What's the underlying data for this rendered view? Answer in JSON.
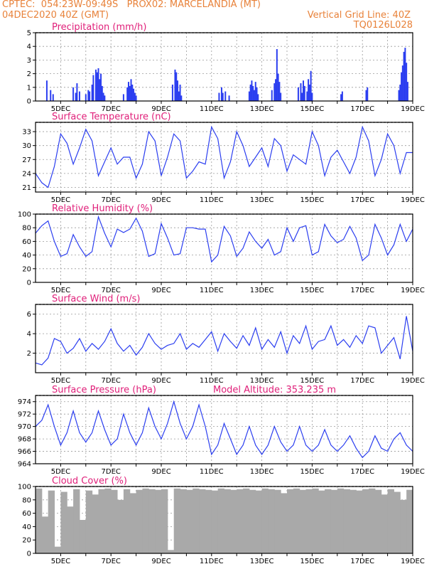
{
  "header": {
    "line1": "CPTEC:  054:23W-09:49S   PROX02: MARCELANDIA (MT)",
    "line2_left": "04DEC2020 40Z (GMT)",
    "line2_right": "Vertical Grid Line: 40Z",
    "line3_right": "TQ0126L028"
  },
  "colors": {
    "header": "#e8823a",
    "title": "#e0207a",
    "line": "#2b3ef0",
    "bar": "#2b3ef0",
    "cloud": "#a9a9a9"
  },
  "chart_data": [
    {
      "type": "bar",
      "title": "Precipitation (mm/h)",
      "x_ticks": [
        "5DEC",
        "7DEC",
        "9DEC",
        "11DEC",
        "13DEC",
        "15DEC",
        "17DEC",
        "19DEC"
      ],
      "x_range_days": [
        4.0,
        19.0
      ],
      "ylim": [
        0,
        5
      ],
      "y_ticks": [
        "0",
        "1",
        "2",
        "3",
        "4",
        "5"
      ],
      "bars": [
        [
          4.45,
          1.5
        ],
        [
          4.6,
          0.8
        ],
        [
          4.7,
          0.5
        ],
        [
          5.5,
          1.0
        ],
        [
          5.6,
          0.6
        ],
        [
          5.65,
          1.3
        ],
        [
          5.75,
          0.7
        ],
        [
          6.0,
          0.5
        ],
        [
          6.1,
          0.8
        ],
        [
          6.15,
          0.7
        ],
        [
          6.25,
          1.2
        ],
        [
          6.3,
          1.9
        ],
        [
          6.4,
          2.3
        ],
        [
          6.45,
          2.1
        ],
        [
          6.5,
          2.4
        ],
        [
          6.55,
          1.6
        ],
        [
          6.6,
          2.0
        ],
        [
          6.65,
          1.1
        ],
        [
          6.7,
          0.6
        ],
        [
          6.75,
          0.4
        ],
        [
          7.5,
          0.5
        ],
        [
          7.65,
          1.0
        ],
        [
          7.7,
          1.4
        ],
        [
          7.75,
          1.1
        ],
        [
          7.8,
          1.6
        ],
        [
          7.85,
          1.2
        ],
        [
          7.9,
          0.9
        ],
        [
          7.95,
          0.6
        ],
        [
          8.0,
          0.4
        ],
        [
          9.45,
          1.2
        ],
        [
          9.55,
          2.3
        ],
        [
          9.6,
          2.1
        ],
        [
          9.65,
          1.5
        ],
        [
          9.7,
          0.7
        ],
        [
          9.75,
          1.2
        ],
        [
          9.8,
          0.4
        ],
        [
          11.3,
          0.6
        ],
        [
          11.4,
          1.0
        ],
        [
          11.45,
          0.6
        ],
        [
          11.55,
          0.7
        ],
        [
          11.7,
          0.4
        ],
        [
          12.5,
          0.7
        ],
        [
          12.55,
          1.2
        ],
        [
          12.6,
          1.5
        ],
        [
          12.65,
          1.1
        ],
        [
          12.7,
          0.8
        ],
        [
          12.75,
          1.4
        ],
        [
          12.8,
          1.0
        ],
        [
          12.85,
          0.5
        ],
        [
          13.4,
          0.8
        ],
        [
          13.5,
          1.3
        ],
        [
          13.55,
          1.6
        ],
        [
          13.6,
          3.8
        ],
        [
          13.65,
          2.0
        ],
        [
          13.7,
          1.4
        ],
        [
          13.75,
          0.6
        ],
        [
          14.45,
          1.0
        ],
        [
          14.55,
          1.3
        ],
        [
          14.6,
          0.6
        ],
        [
          14.65,
          1.5
        ],
        [
          14.7,
          1.1
        ],
        [
          14.8,
          0.7
        ],
        [
          14.85,
          1.6
        ],
        [
          14.9,
          1.2
        ],
        [
          14.95,
          2.2
        ],
        [
          15.0,
          0.6
        ],
        [
          16.15,
          0.5
        ],
        [
          16.2,
          0.7
        ],
        [
          17.15,
          0.8
        ],
        [
          17.2,
          1.0
        ],
        [
          18.45,
          0.8
        ],
        [
          18.5,
          1.2
        ],
        [
          18.55,
          2.1
        ],
        [
          18.6,
          2.6
        ],
        [
          18.65,
          3.6
        ],
        [
          18.7,
          3.9
        ],
        [
          18.75,
          2.8
        ],
        [
          18.8,
          1.4
        ]
      ]
    },
    {
      "type": "line",
      "title": "Surface Temperature (nC)",
      "x_ticks": [
        "5DEC",
        "7DEC",
        "9DEC",
        "11DEC",
        "13DEC",
        "15DEC",
        "17DEC",
        "19DEC"
      ],
      "x_range_days": [
        4.0,
        19.0
      ],
      "ylim": [
        20,
        35
      ],
      "y_ticks": [
        "21",
        "24",
        "27",
        "30",
        "33"
      ],
      "x": [
        4.0,
        4.25,
        4.5,
        4.75,
        5.0,
        5.25,
        5.5,
        5.75,
        6.0,
        6.25,
        6.5,
        6.75,
        7.0,
        7.25,
        7.5,
        7.75,
        8.0,
        8.25,
        8.5,
        8.75,
        9.0,
        9.25,
        9.5,
        9.75,
        10.0,
        10.25,
        10.5,
        10.75,
        11.0,
        11.25,
        11.5,
        11.75,
        12.0,
        12.25,
        12.5,
        12.75,
        13.0,
        13.25,
        13.5,
        13.75,
        14.0,
        14.25,
        14.5,
        14.75,
        15.0,
        15.25,
        15.5,
        15.75,
        16.0,
        16.25,
        16.5,
        16.75,
        17.0,
        17.25,
        17.5,
        17.75,
        18.0,
        18.25,
        18.5,
        18.75,
        19.0
      ],
      "y": [
        24.0,
        22.0,
        21.0,
        25.5,
        32.5,
        30.5,
        26.0,
        29.5,
        33.5,
        31.0,
        23.5,
        26.5,
        29.5,
        26.0,
        27.5,
        27.5,
        23.0,
        26.0,
        33.0,
        31.0,
        23.5,
        27.5,
        32.5,
        31.0,
        23.0,
        24.5,
        26.5,
        26.0,
        34.0,
        31.5,
        23.0,
        26.5,
        33.0,
        30.0,
        25.5,
        27.5,
        29.5,
        25.5,
        31.5,
        30.0,
        24.5,
        28.0,
        27.0,
        26.0,
        33.0,
        30.0,
        23.5,
        27.5,
        29.0,
        26.5,
        24.0,
        27.5,
        34.0,
        31.0,
        23.5,
        27.0,
        32.5,
        30.0,
        24.0,
        28.5,
        28.5
      ]
    },
    {
      "type": "line",
      "title": "Relative Humidity (%)",
      "x_ticks": [
        "5DEC",
        "7DEC",
        "9DEC",
        "11DEC",
        "13DEC",
        "15DEC",
        "17DEC",
        "19DEC"
      ],
      "x_range_days": [
        4.0,
        19.0
      ],
      "ylim": [
        0,
        100
      ],
      "y_ticks": [
        "0",
        "20",
        "40",
        "60",
        "80",
        "100"
      ],
      "x": [
        4.0,
        4.25,
        4.5,
        4.75,
        5.0,
        5.25,
        5.5,
        5.75,
        6.0,
        6.25,
        6.5,
        6.75,
        7.0,
        7.25,
        7.5,
        7.75,
        8.0,
        8.25,
        8.5,
        8.75,
        9.0,
        9.25,
        9.5,
        9.75,
        10.0,
        10.25,
        10.5,
        10.75,
        11.0,
        11.25,
        11.5,
        11.75,
        12.0,
        12.25,
        12.5,
        12.75,
        13.0,
        13.25,
        13.5,
        13.75,
        14.0,
        14.25,
        14.5,
        14.75,
        15.0,
        15.25,
        15.5,
        15.75,
        16.0,
        16.25,
        16.5,
        16.75,
        17.0,
        17.25,
        17.5,
        17.75,
        18.0,
        18.25,
        18.5,
        18.75,
        19.0
      ],
      "y": [
        72.0,
        83.0,
        90.0,
        60.0,
        38.0,
        42.0,
        70.0,
        52.0,
        38.0,
        45.0,
        96.0,
        72.0,
        52.0,
        78.0,
        73.0,
        78.0,
        94.0,
        75.0,
        38.0,
        42.0,
        86.0,
        65.0,
        40.0,
        42.0,
        80.0,
        80.0,
        78.0,
        78.0,
        30.0,
        40.0,
        82.0,
        68.0,
        38.0,
        50.0,
        74.0,
        60.0,
        50.0,
        63.0,
        40.0,
        45.0,
        80.0,
        60.0,
        80.0,
        83.0,
        40.0,
        45.0,
        85.0,
        68.0,
        58.0,
        63.0,
        82.0,
        65.0,
        32.0,
        40.0,
        85.0,
        65.0,
        40.0,
        55.0,
        85.0,
        60.0,
        78.0
      ]
    },
    {
      "type": "line",
      "title": "Surface Wind (m/s)",
      "x_ticks": [
        "5DEC",
        "7DEC",
        "9DEC",
        "11DEC",
        "13DEC",
        "15DEC",
        "17DEC",
        "19DEC"
      ],
      "x_range_days": [
        4.0,
        19.0
      ],
      "ylim": [
        0,
        7
      ],
      "y_ticks": [
        "2",
        "4",
        "6"
      ],
      "x": [
        4.0,
        4.25,
        4.5,
        4.75,
        5.0,
        5.25,
        5.5,
        5.75,
        6.0,
        6.25,
        6.5,
        6.75,
        7.0,
        7.25,
        7.5,
        7.75,
        8.0,
        8.25,
        8.5,
        8.75,
        9.0,
        9.25,
        9.5,
        9.75,
        10.0,
        10.25,
        10.5,
        10.75,
        11.0,
        11.25,
        11.5,
        11.75,
        12.0,
        12.25,
        12.5,
        12.75,
        13.0,
        13.25,
        13.5,
        13.75,
        14.0,
        14.25,
        14.5,
        14.75,
        15.0,
        15.25,
        15.5,
        15.75,
        16.0,
        16.25,
        16.5,
        16.75,
        17.0,
        17.25,
        17.5,
        17.75,
        18.0,
        18.25,
        18.5,
        18.75,
        19.0
      ],
      "y": [
        1.0,
        0.8,
        1.5,
        3.5,
        3.2,
        2.0,
        2.5,
        3.5,
        2.2,
        3.0,
        2.4,
        3.2,
        4.5,
        3.0,
        2.2,
        2.8,
        1.8,
        2.6,
        4.0,
        3.0,
        2.4,
        2.8,
        3.0,
        4.0,
        2.4,
        3.0,
        2.6,
        3.4,
        4.2,
        2.2,
        4.0,
        3.2,
        2.5,
        3.8,
        2.8,
        4.6,
        2.4,
        3.4,
        2.6,
        4.2,
        2.0,
        3.8,
        3.0,
        4.8,
        2.4,
        3.2,
        3.4,
        4.8,
        2.8,
        3.4,
        2.6,
        3.8,
        3.0,
        4.8,
        4.6,
        2.0,
        2.8,
        3.6,
        1.4,
        5.8,
        2.2
      ]
    },
    {
      "type": "line",
      "title": "Surface Pressure (hPa)",
      "annotation": "Model Altitude: 353.235 m",
      "x_ticks": [
        "5DEC",
        "7DEC",
        "9DEC",
        "11DEC",
        "13DEC",
        "15DEC",
        "17DEC",
        "19DEC"
      ],
      "x_range_days": [
        4.0,
        19.0
      ],
      "ylim": [
        964,
        975
      ],
      "y_ticks": [
        "964",
        "966",
        "968",
        "970",
        "972",
        "974"
      ],
      "x": [
        4.0,
        4.25,
        4.5,
        4.75,
        5.0,
        5.25,
        5.5,
        5.75,
        6.0,
        6.25,
        6.5,
        6.75,
        7.0,
        7.25,
        7.5,
        7.75,
        8.0,
        8.25,
        8.5,
        8.75,
        9.0,
        9.25,
        9.5,
        9.75,
        10.0,
        10.25,
        10.5,
        10.75,
        11.0,
        11.25,
        11.5,
        11.75,
        12.0,
        12.25,
        12.5,
        12.75,
        13.0,
        13.25,
        13.5,
        13.75,
        14.0,
        14.25,
        14.5,
        14.75,
        15.0,
        15.25,
        15.5,
        15.75,
        16.0,
        16.25,
        16.5,
        16.75,
        17.0,
        17.25,
        17.5,
        17.75,
        18.0,
        18.25,
        18.5,
        18.75,
        19.0
      ],
      "y": [
        970.0,
        971.0,
        973.5,
        970.0,
        967.0,
        969.0,
        972.5,
        969.0,
        967.5,
        969.0,
        972.5,
        969.5,
        967.0,
        968.0,
        972.0,
        969.0,
        967.0,
        969.0,
        973.0,
        970.0,
        968.0,
        970.5,
        974.0,
        970.5,
        968.0,
        970.0,
        973.5,
        970.0,
        965.5,
        967.0,
        970.5,
        968.0,
        965.5,
        967.0,
        970.0,
        967.0,
        965.5,
        967.0,
        970.0,
        967.5,
        966.0,
        967.0,
        970.0,
        967.0,
        966.0,
        967.0,
        969.5,
        967.0,
        966.0,
        967.0,
        968.5,
        966.5,
        965.0,
        966.0,
        968.5,
        966.5,
        966.0,
        968.0,
        969.0,
        967.0,
        966.0
      ]
    },
    {
      "type": "bar",
      "title": "Cloud Cover (%)",
      "x_ticks": [
        "5DEC",
        "7DEC",
        "9DEC",
        "11DEC",
        "13DEC",
        "15DEC",
        "17DEC",
        "19DEC"
      ],
      "x_range_days": [
        4.0,
        19.0
      ],
      "ylim": [
        0,
        100
      ],
      "y_ticks": [
        "0",
        "20",
        "40",
        "60",
        "80",
        "100"
      ],
      "x": [
        4.0,
        4.25,
        4.5,
        4.75,
        5.0,
        5.25,
        5.5,
        5.75,
        6.0,
        6.25,
        6.5,
        6.75,
        7.0,
        7.25,
        7.5,
        7.75,
        8.0,
        8.25,
        8.5,
        8.75,
        9.0,
        9.25,
        9.5,
        9.75,
        10.0,
        10.25,
        10.5,
        10.75,
        11.0,
        11.25,
        11.5,
        11.75,
        12.0,
        12.25,
        12.5,
        12.75,
        13.0,
        13.25,
        13.5,
        13.75,
        14.0,
        14.25,
        14.5,
        14.75,
        15.0,
        15.25,
        15.5,
        15.75,
        16.0,
        16.25,
        16.5,
        16.75,
        17.0,
        17.25,
        17.5,
        17.75,
        18.0,
        18.25,
        18.5,
        18.75,
        19.0
      ],
      "y": [
        97.0,
        55.0,
        94.0,
        10.0,
        92.0,
        70.0,
        96.0,
        50.0,
        94.0,
        88.0,
        96.0,
        97.0,
        95.0,
        80.0,
        96.0,
        90.0,
        95.0,
        97.0,
        96.0,
        95.0,
        96.0,
        5.0,
        97.0,
        96.0,
        95.0,
        97.0,
        96.0,
        95.0,
        94.0,
        97.0,
        96.0,
        95.0,
        96.0,
        97.0,
        95.0,
        94.0,
        97.0,
        96.0,
        95.0,
        90.0,
        96.0,
        97.0,
        95.0,
        96.0,
        97.0,
        94.0,
        96.0,
        95.0,
        97.0,
        96.0,
        95.0,
        94.0,
        96.0,
        97.0,
        95.0,
        88.0,
        96.0,
        92.0,
        80.0,
        95.0,
        97.0
      ]
    }
  ]
}
